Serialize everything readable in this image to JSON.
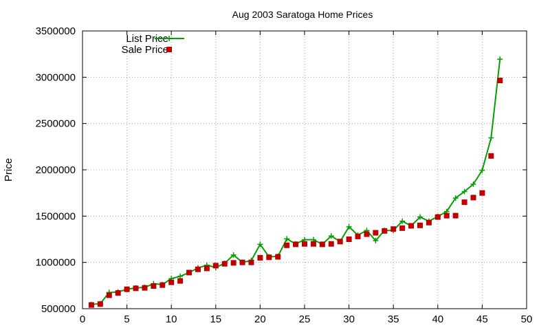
{
  "chart_data": {
    "type": "line",
    "title": "Aug 2003 Saratoga Home Prices",
    "xlabel": "",
    "ylabel": "Price",
    "xlim": [
      0,
      50
    ],
    "ylim": [
      500000,
      3500000
    ],
    "xticks": [
      "0",
      "5",
      "10",
      "15",
      "20",
      "25",
      "30",
      "35",
      "40",
      "45",
      "50"
    ],
    "yticks": [
      "500000",
      "1000000",
      "1500000",
      "2000000",
      "2500000",
      "3000000",
      "3500000"
    ],
    "grid": true,
    "legend_position": "top-left",
    "colors": {
      "list": "#00a000",
      "sale": "#c00000",
      "grid": "#a0a0a0",
      "axis": "#000000"
    },
    "x": [
      1,
      2,
      3,
      4,
      5,
      6,
      7,
      8,
      9,
      10,
      11,
      12,
      13,
      14,
      15,
      16,
      17,
      18,
      19,
      20,
      21,
      22,
      23,
      24,
      25,
      26,
      27,
      28,
      29,
      30,
      31,
      32,
      33,
      34,
      35,
      36,
      37,
      38,
      39,
      40,
      41,
      42,
      43,
      44,
      45,
      46,
      47
    ],
    "series": [
      {
        "name": "List Price",
        "style": "line-with-plus-markers",
        "values": [
          545000,
          555000,
          675000,
          680000,
          710000,
          725000,
          730000,
          770000,
          760000,
          825000,
          850000,
          890000,
          940000,
          970000,
          945000,
          990000,
          1080000,
          1000000,
          1020000,
          1195000,
          1060000,
          1065000,
          1255000,
          1200000,
          1245000,
          1245000,
          1195000,
          1285000,
          1225000,
          1385000,
          1295000,
          1345000,
          1235000,
          1345000,
          1345000,
          1445000,
          1395000,
          1490000,
          1445000,
          1495000,
          1550000,
          1695000,
          1765000,
          1845000,
          1995000,
          2345000,
          3195000
        ]
      },
      {
        "name": "Sale Price",
        "style": "square-markers",
        "values": [
          540000,
          550000,
          645000,
          670000,
          710000,
          720000,
          725000,
          745000,
          755000,
          785000,
          800000,
          890000,
          925000,
          935000,
          965000,
          985000,
          995000,
          1000000,
          1000000,
          1050000,
          1055000,
          1060000,
          1185000,
          1195000,
          1200000,
          1200000,
          1195000,
          1200000,
          1225000,
          1250000,
          1280000,
          1305000,
          1320000,
          1340000,
          1360000,
          1370000,
          1395000,
          1400000,
          1430000,
          1490000,
          1505000,
          1505000,
          1650000,
          1700000,
          1750000,
          2150000,
          2965000
        ]
      }
    ]
  }
}
